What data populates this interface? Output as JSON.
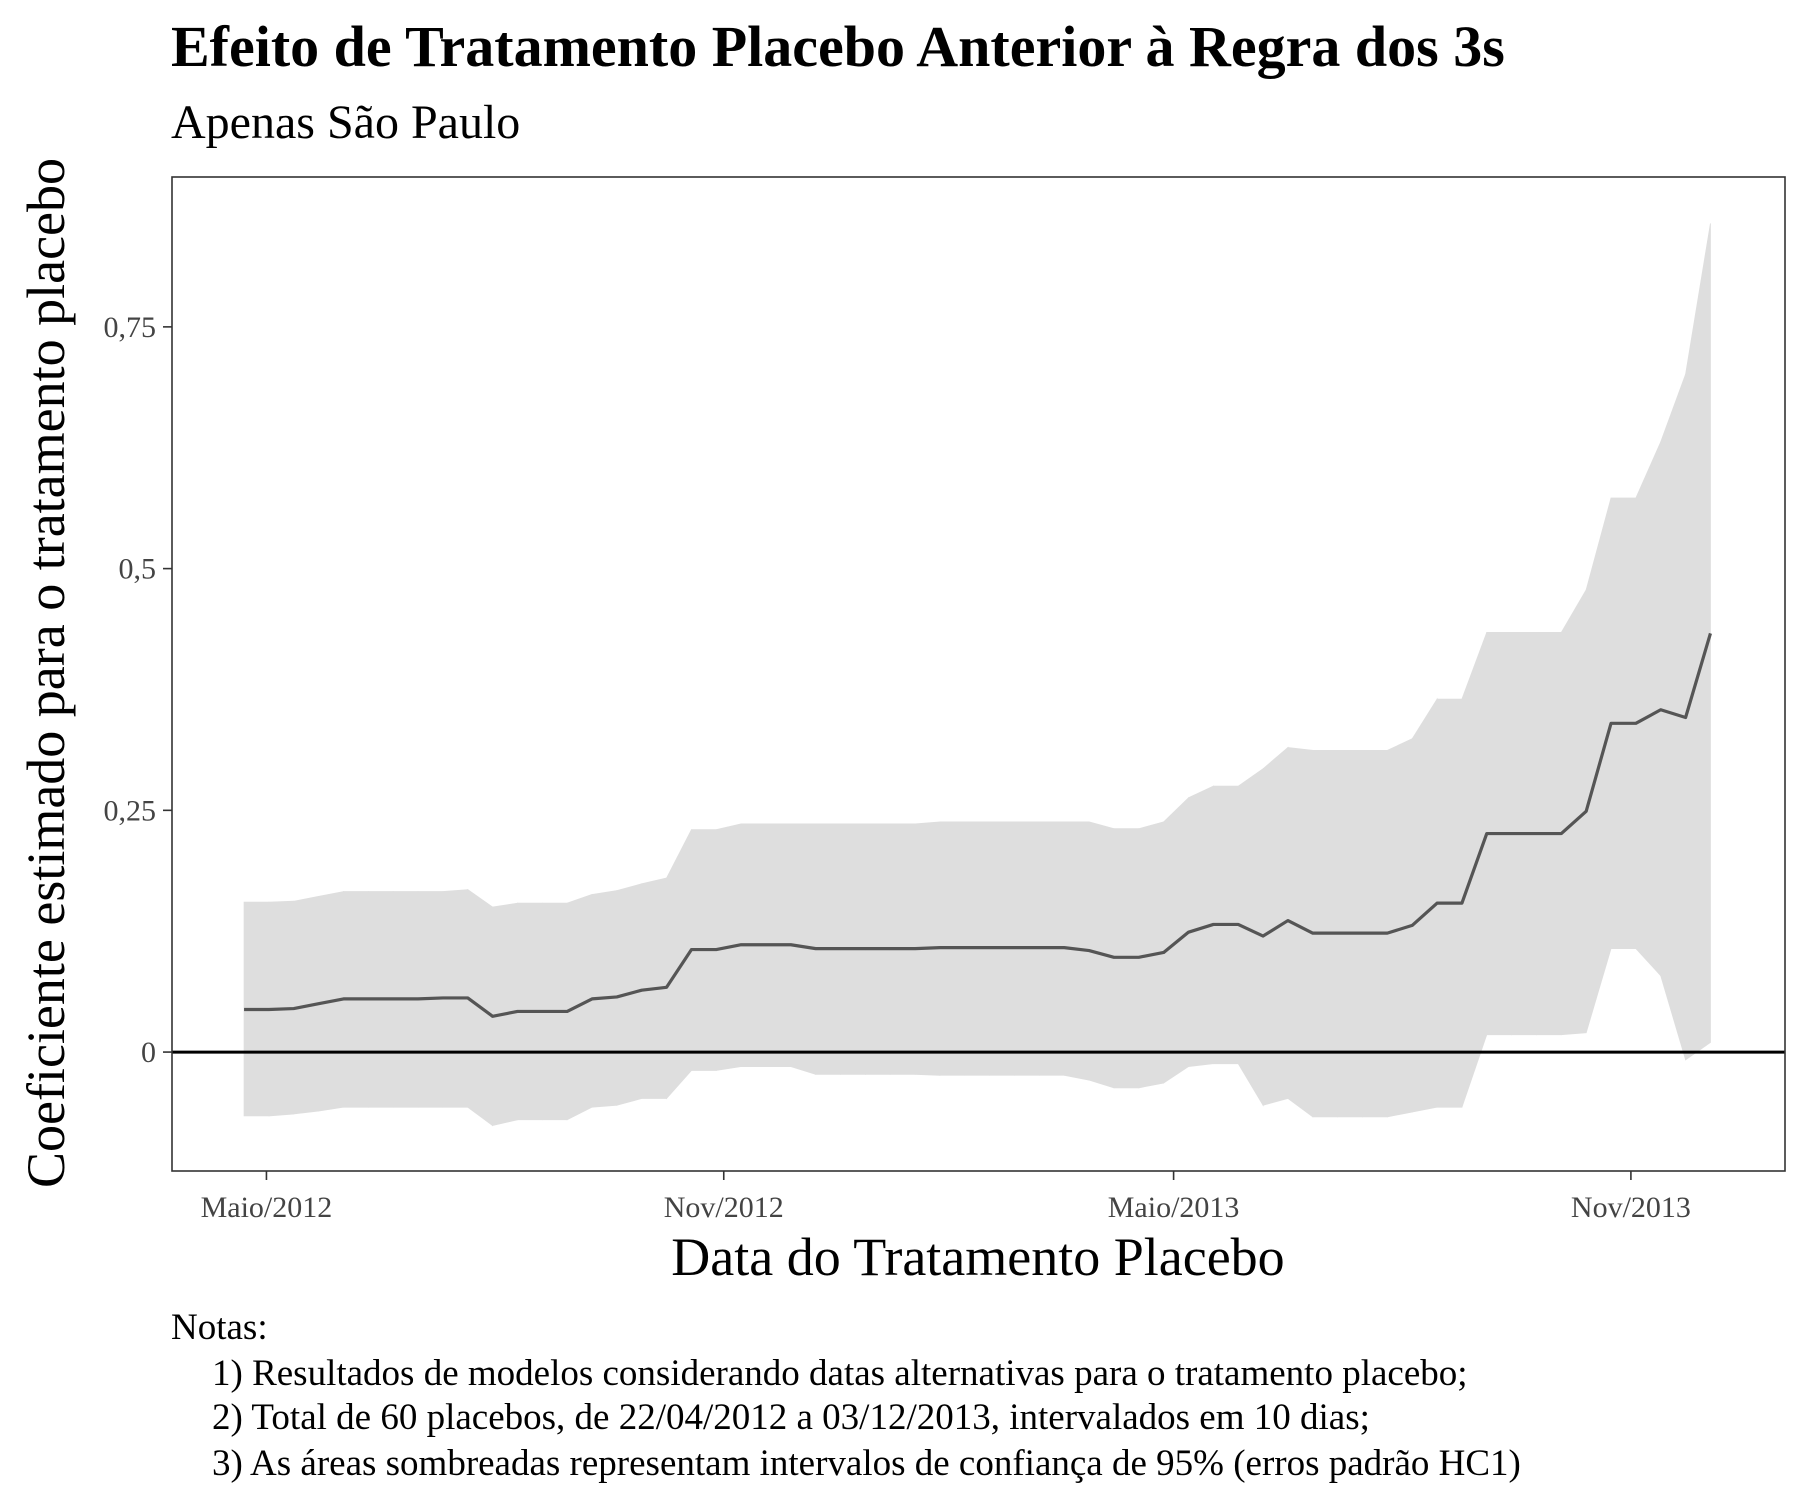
{
  "chart_data": {
    "type": "line",
    "title": "Efeito de Tratamento Placebo Anterior à Regra dos 3s",
    "subtitle": "Apenas São Paulo",
    "x_label": "Data do Tratamento Placebo",
    "y_label": "Coeficiente estimado para o tratamento placebo",
    "notes_title": "Notas:",
    "notes": [
      "1) Resultados de modelos considerando datas alternativas para o tratamento placebo;",
      "2) Total de 60 placebos, de 22/04/2012 a 03/12/2013, intervalados em 10 dias;",
      "3) As áreas sombreadas representam intervalos de confiança de 95% (erros padrão HC1)"
    ],
    "x": [
      "2012-04-22",
      "2012-05-02",
      "2012-05-12",
      "2012-05-22",
      "2012-06-01",
      "2012-06-11",
      "2012-06-21",
      "2012-07-01",
      "2012-07-11",
      "2012-07-21",
      "2012-07-31",
      "2012-08-10",
      "2012-08-20",
      "2012-08-30",
      "2012-09-09",
      "2012-09-19",
      "2012-09-29",
      "2012-10-09",
      "2012-10-19",
      "2012-10-29",
      "2012-11-08",
      "2012-11-18",
      "2012-11-28",
      "2012-12-08",
      "2012-12-18",
      "2012-12-28",
      "2013-01-07",
      "2013-01-17",
      "2013-01-27",
      "2013-02-06",
      "2013-02-16",
      "2013-02-26",
      "2013-03-08",
      "2013-03-18",
      "2013-03-28",
      "2013-04-07",
      "2013-04-17",
      "2013-04-27",
      "2013-05-07",
      "2013-05-17",
      "2013-05-27",
      "2013-06-06",
      "2013-06-16",
      "2013-06-26",
      "2013-07-06",
      "2013-07-16",
      "2013-07-26",
      "2013-08-05",
      "2013-08-15",
      "2013-08-25",
      "2013-09-04",
      "2013-09-14",
      "2013-09-24",
      "2013-10-04",
      "2013-10-14",
      "2013-10-24",
      "2013-11-03",
      "2013-11-13",
      "2013-11-23",
      "2013-12-03"
    ],
    "values": [
      0.044,
      0.044,
      0.045,
      0.05,
      0.055,
      0.055,
      0.055,
      0.055,
      0.056,
      0.056,
      0.037,
      0.042,
      0.042,
      0.042,
      0.055,
      0.057,
      0.064,
      0.067,
      0.106,
      0.106,
      0.111,
      0.111,
      0.111,
      0.107,
      0.107,
      0.107,
      0.107,
      0.107,
      0.108,
      0.108,
      0.108,
      0.108,
      0.108,
      0.108,
      0.105,
      0.098,
      0.098,
      0.103,
      0.124,
      0.132,
      0.132,
      0.12,
      0.136,
      0.123,
      0.123,
      0.123,
      0.123,
      0.131,
      0.154,
      0.154,
      0.226,
      0.226,
      0.226,
      0.226,
      0.249,
      0.34,
      0.34,
      0.354,
      0.346,
      0.433
    ],
    "upper": [
      0.155,
      0.155,
      0.156,
      0.161,
      0.166,
      0.166,
      0.166,
      0.166,
      0.166,
      0.168,
      0.15,
      0.154,
      0.154,
      0.154,
      0.163,
      0.167,
      0.174,
      0.18,
      0.23,
      0.23,
      0.236,
      0.236,
      0.236,
      0.236,
      0.236,
      0.236,
      0.236,
      0.236,
      0.238,
      0.238,
      0.238,
      0.238,
      0.238,
      0.238,
      0.238,
      0.231,
      0.231,
      0.238,
      0.263,
      0.275,
      0.275,
      0.293,
      0.315,
      0.312,
      0.312,
      0.312,
      0.312,
      0.324,
      0.365,
      0.365,
      0.434,
      0.434,
      0.434,
      0.434,
      0.478,
      0.573,
      0.573,
      0.631,
      0.701,
      0.857
    ],
    "lower": [
      -0.066,
      -0.066,
      -0.064,
      -0.061,
      -0.057,
      -0.057,
      -0.057,
      -0.057,
      -0.057,
      -0.057,
      -0.076,
      -0.07,
      -0.07,
      -0.07,
      -0.057,
      -0.055,
      -0.048,
      -0.048,
      -0.019,
      -0.019,
      -0.015,
      -0.015,
      -0.015,
      -0.023,
      -0.023,
      -0.023,
      -0.023,
      -0.023,
      -0.024,
      -0.024,
      -0.024,
      -0.024,
      -0.024,
      -0.024,
      -0.029,
      -0.037,
      -0.037,
      -0.032,
      -0.015,
      -0.012,
      -0.012,
      -0.055,
      -0.048,
      -0.067,
      -0.067,
      -0.067,
      -0.067,
      -0.062,
      -0.057,
      -0.057,
      0.018,
      0.018,
      0.018,
      0.018,
      0.02,
      0.107,
      0.107,
      0.079,
      -0.008,
      0.01
    ],
    "color": "#555555",
    "band_color": "#dedede",
    "reference_line": 0,
    "xlim": [
      "2012-03-24",
      "2014-01-02"
    ],
    "xticks": [
      {
        "value": "2012-05-01",
        "label": "Maio/2012"
      },
      {
        "value": "2012-11-01",
        "label": "Nov/2012"
      },
      {
        "value": "2013-05-01",
        "label": "Maio/2013"
      },
      {
        "value": "2013-11-01",
        "label": "Nov/2013"
      }
    ],
    "ylim": [
      -0.123,
      0.905
    ],
    "yticks": [
      0,
      {
        "value": 0.25,
        "label": "0,25"
      },
      {
        "value": 0.5,
        "label": "0,5"
      },
      {
        "value": 0.75,
        "label": "0,75"
      }
    ],
    "grid": false
  }
}
